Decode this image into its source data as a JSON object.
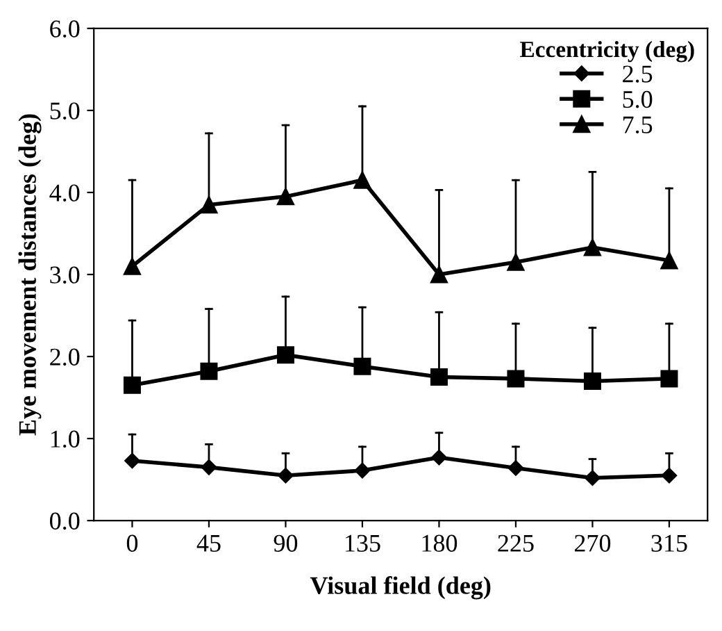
{
  "chart_data": {
    "type": "line",
    "xlabel": "Visual field (deg)",
    "ylabel": "Eye movement distances (deg)",
    "legend_title": "Eccentricity (deg)",
    "legend": "top right",
    "grid": false,
    "line_style": "solid",
    "categories": [
      "0",
      "45",
      "90",
      "135",
      "180",
      "225",
      "270",
      "315"
    ],
    "ylim": [
      0,
      6
    ],
    "yticks": [
      {
        "value": 0,
        "label": "0.0"
      },
      {
        "value": 1,
        "label": "1.0"
      },
      {
        "value": 2,
        "label": "2.0"
      },
      {
        "value": 3,
        "label": "3.0"
      },
      {
        "value": 4,
        "label": "4.0"
      },
      {
        "value": 5,
        "label": "5.0"
      },
      {
        "value": 6,
        "label": "6.0"
      }
    ],
    "series": [
      {
        "name": "2.5",
        "color": "#000000",
        "marker": "diamond",
        "values": [
          0.73,
          0.65,
          0.55,
          0.61,
          0.77,
          0.64,
          0.52,
          0.55
        ],
        "errors": [
          [
            0.73,
            1.05
          ],
          [
            0.65,
            0.93
          ],
          [
            0.55,
            0.82
          ],
          [
            0.61,
            0.9
          ],
          [
            0.77,
            1.07
          ],
          [
            0.64,
            0.9
          ],
          [
            0.52,
            0.75
          ],
          [
            0.55,
            0.82
          ]
        ]
      },
      {
        "name": "5.0",
        "color": "#000000",
        "marker": "square",
        "values": [
          1.65,
          1.82,
          2.02,
          1.88,
          1.75,
          1.73,
          1.7,
          1.73
        ],
        "errors": [
          [
            1.65,
            2.44
          ],
          [
            1.82,
            2.58
          ],
          [
            2.02,
            2.73
          ],
          [
            1.88,
            2.6
          ],
          [
            1.75,
            2.54
          ],
          [
            1.73,
            2.4
          ],
          [
            1.7,
            2.35
          ],
          [
            1.73,
            2.4
          ]
        ]
      },
      {
        "name": "7.5",
        "color": "#000000",
        "marker": "triangle",
        "values": [
          3.1,
          3.85,
          3.95,
          4.15,
          3.0,
          3.15,
          3.33,
          3.17
        ],
        "errors": [
          [
            3.1,
            4.15
          ],
          [
            3.85,
            4.72
          ],
          [
            3.95,
            4.82
          ],
          [
            4.15,
            5.05
          ],
          [
            3.0,
            4.03
          ],
          [
            3.15,
            4.15
          ],
          [
            3.33,
            4.25
          ],
          [
            3.17,
            4.05
          ]
        ]
      }
    ]
  }
}
